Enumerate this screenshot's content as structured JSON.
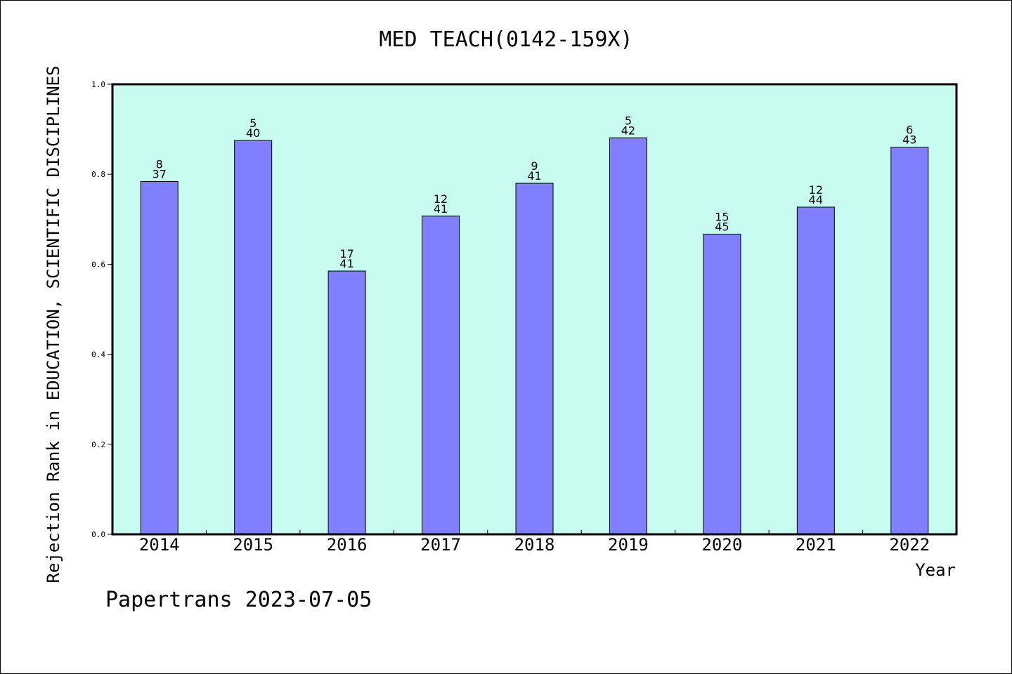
{
  "chart_data": {
    "type": "bar",
    "title": "MED TEACH(0142-159X)",
    "xlabel": "Year",
    "ylabel": "Rejection Rank in EDUCATION, SCIENTIFIC DISCIPLINES",
    "footer": "Papertrans 2023-07-05",
    "categories": [
      "2014",
      "2015",
      "2016",
      "2017",
      "2018",
      "2019",
      "2020",
      "2021",
      "2022"
    ],
    "values": [
      0.784,
      0.875,
      0.585,
      0.707,
      0.78,
      0.881,
      0.667,
      0.727,
      0.86
    ],
    "rank_labels": [
      "8",
      "5",
      "17",
      "12",
      "9",
      "5",
      "15",
      "12",
      "6"
    ],
    "total_labels": [
      "37",
      "40",
      "41",
      "41",
      "41",
      "42",
      "45",
      "44",
      "43"
    ],
    "ylim": [
      0,
      1.0
    ],
    "yticks": [
      "0.0",
      "0.2",
      "0.4",
      "0.6",
      "0.8",
      "1.0"
    ],
    "grid": false,
    "colors": {
      "plot_bg": "#c8fcf0",
      "bar_fill": "#8080ff",
      "bar_stroke": "#000000"
    }
  }
}
